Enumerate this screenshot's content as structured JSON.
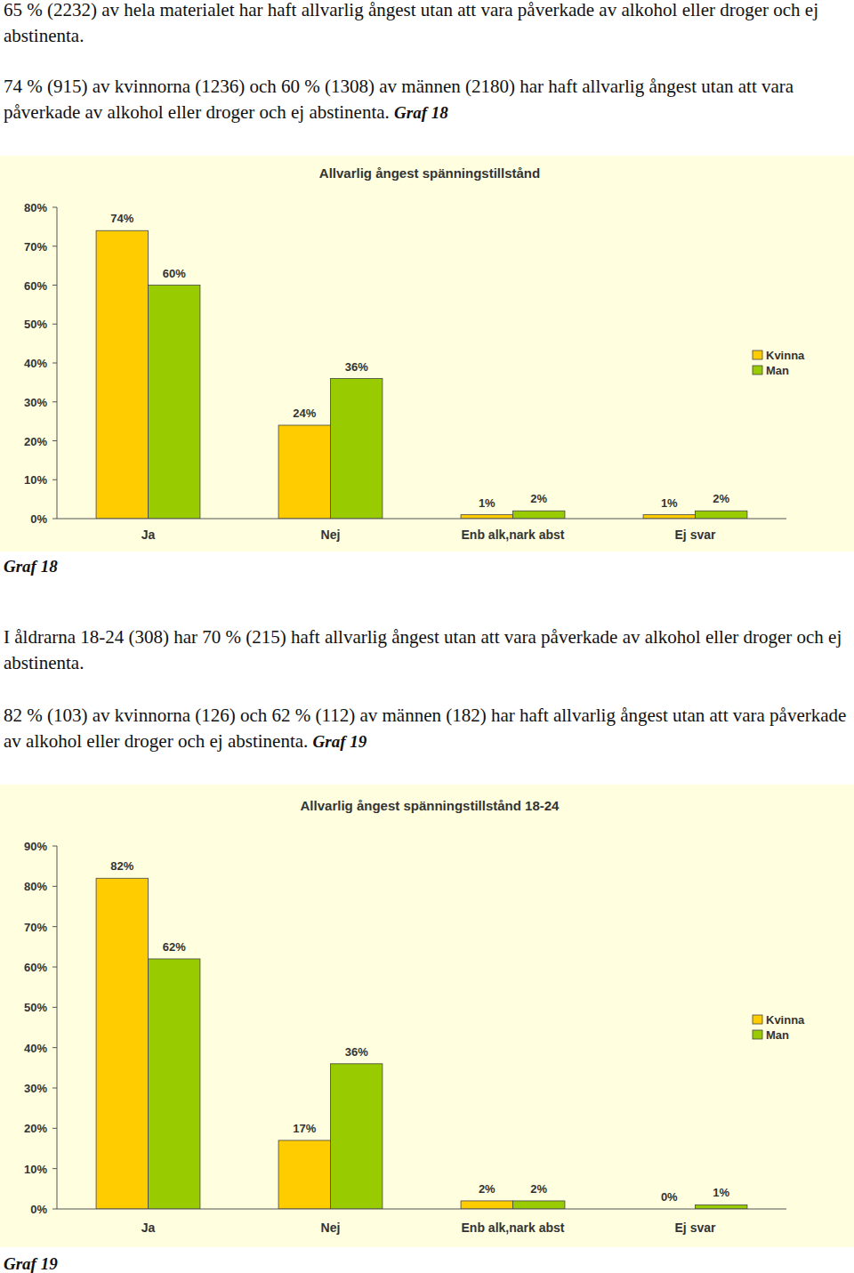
{
  "paragraphs": [
    {
      "text": "65 % (2232) av hela materialet har haft allvarlig ångest utan att vara påverkade av alkohol eller droger och ej abstinenta."
    },
    {
      "text": "74 % (915) av kvinnorna (1236) och 60 % (1308) av männen (2180) har haft allvarlig ångest utan att vara påverkade av alkohol eller droger och ej abstinenta.",
      "ref": "Graf 18"
    },
    {
      "text": "I åldrarna 18-24 (308) har 70 % (215) haft allvarlig ångest utan att vara påverkade av alkohol eller droger och ej abstinenta."
    },
    {
      "text": "82 % (103) av kvinnorna (126) och 62 % (112) av männen (182) har haft allvarlig ångest utan att vara påverkade av alkohol eller droger och ej abstinenta.",
      "ref": "Graf 19"
    }
  ],
  "captions": [
    "Graf 18",
    "Graf 19"
  ],
  "chart_data": [
    {
      "type": "bar",
      "title": "Allvarlig ångest spänningstillstånd",
      "categories": [
        "Ja",
        "Nej",
        "Enb alk,nark abst",
        "Ej svar"
      ],
      "series": [
        {
          "name": "Kvinna",
          "color": "#ffcc00",
          "values": [
            74,
            24,
            1,
            1
          ],
          "value_labels": [
            "74%",
            "24%",
            "1%",
            "1%"
          ]
        },
        {
          "name": "Man",
          "color": "#99cc00",
          "values": [
            60,
            36,
            2,
            2
          ],
          "value_labels": [
            "60%",
            "36%",
            "2%",
            "2%"
          ]
        }
      ],
      "ylim": [
        0,
        80
      ],
      "yticks": [
        {
          "value": 0,
          "label": "0%"
        },
        {
          "value": 10,
          "label": "10%"
        },
        {
          "value": 20,
          "label": "20%"
        },
        {
          "value": 30,
          "label": "30%"
        },
        {
          "value": 40,
          "label": "40%"
        },
        {
          "value": 50,
          "label": "50%"
        },
        {
          "value": 60,
          "label": "60%"
        },
        {
          "value": 70,
          "label": "70%"
        },
        {
          "value": 80,
          "label": "80%"
        }
      ],
      "grid": false,
      "legend": "right",
      "data_labels": true
    },
    {
      "type": "bar",
      "title": "Allvarlig ångest spänningstillstånd 18-24",
      "categories": [
        "Ja",
        "Nej",
        "Enb alk,nark abst",
        "Ej svar"
      ],
      "series": [
        {
          "name": "Kvinna",
          "color": "#ffcc00",
          "values": [
            82,
            17,
            2,
            0
          ],
          "value_labels": [
            "82%",
            "17%",
            "2%",
            "0%"
          ]
        },
        {
          "name": "Man",
          "color": "#99cc00",
          "values": [
            62,
            36,
            2,
            1
          ],
          "value_labels": [
            "62%",
            "36%",
            "2%",
            "1%"
          ]
        }
      ],
      "ylim": [
        0,
        90
      ],
      "yticks": [
        {
          "value": 0,
          "label": "0%"
        },
        {
          "value": 10,
          "label": "10%"
        },
        {
          "value": 20,
          "label": "20%"
        },
        {
          "value": 30,
          "label": "30%"
        },
        {
          "value": 40,
          "label": "40%"
        },
        {
          "value": 50,
          "label": "50%"
        },
        {
          "value": 60,
          "label": "60%"
        },
        {
          "value": 70,
          "label": "70%"
        },
        {
          "value": 80,
          "label": "80%"
        },
        {
          "value": 90,
          "label": "90%"
        }
      ],
      "grid": false,
      "legend": "right",
      "data_labels": true
    }
  ]
}
